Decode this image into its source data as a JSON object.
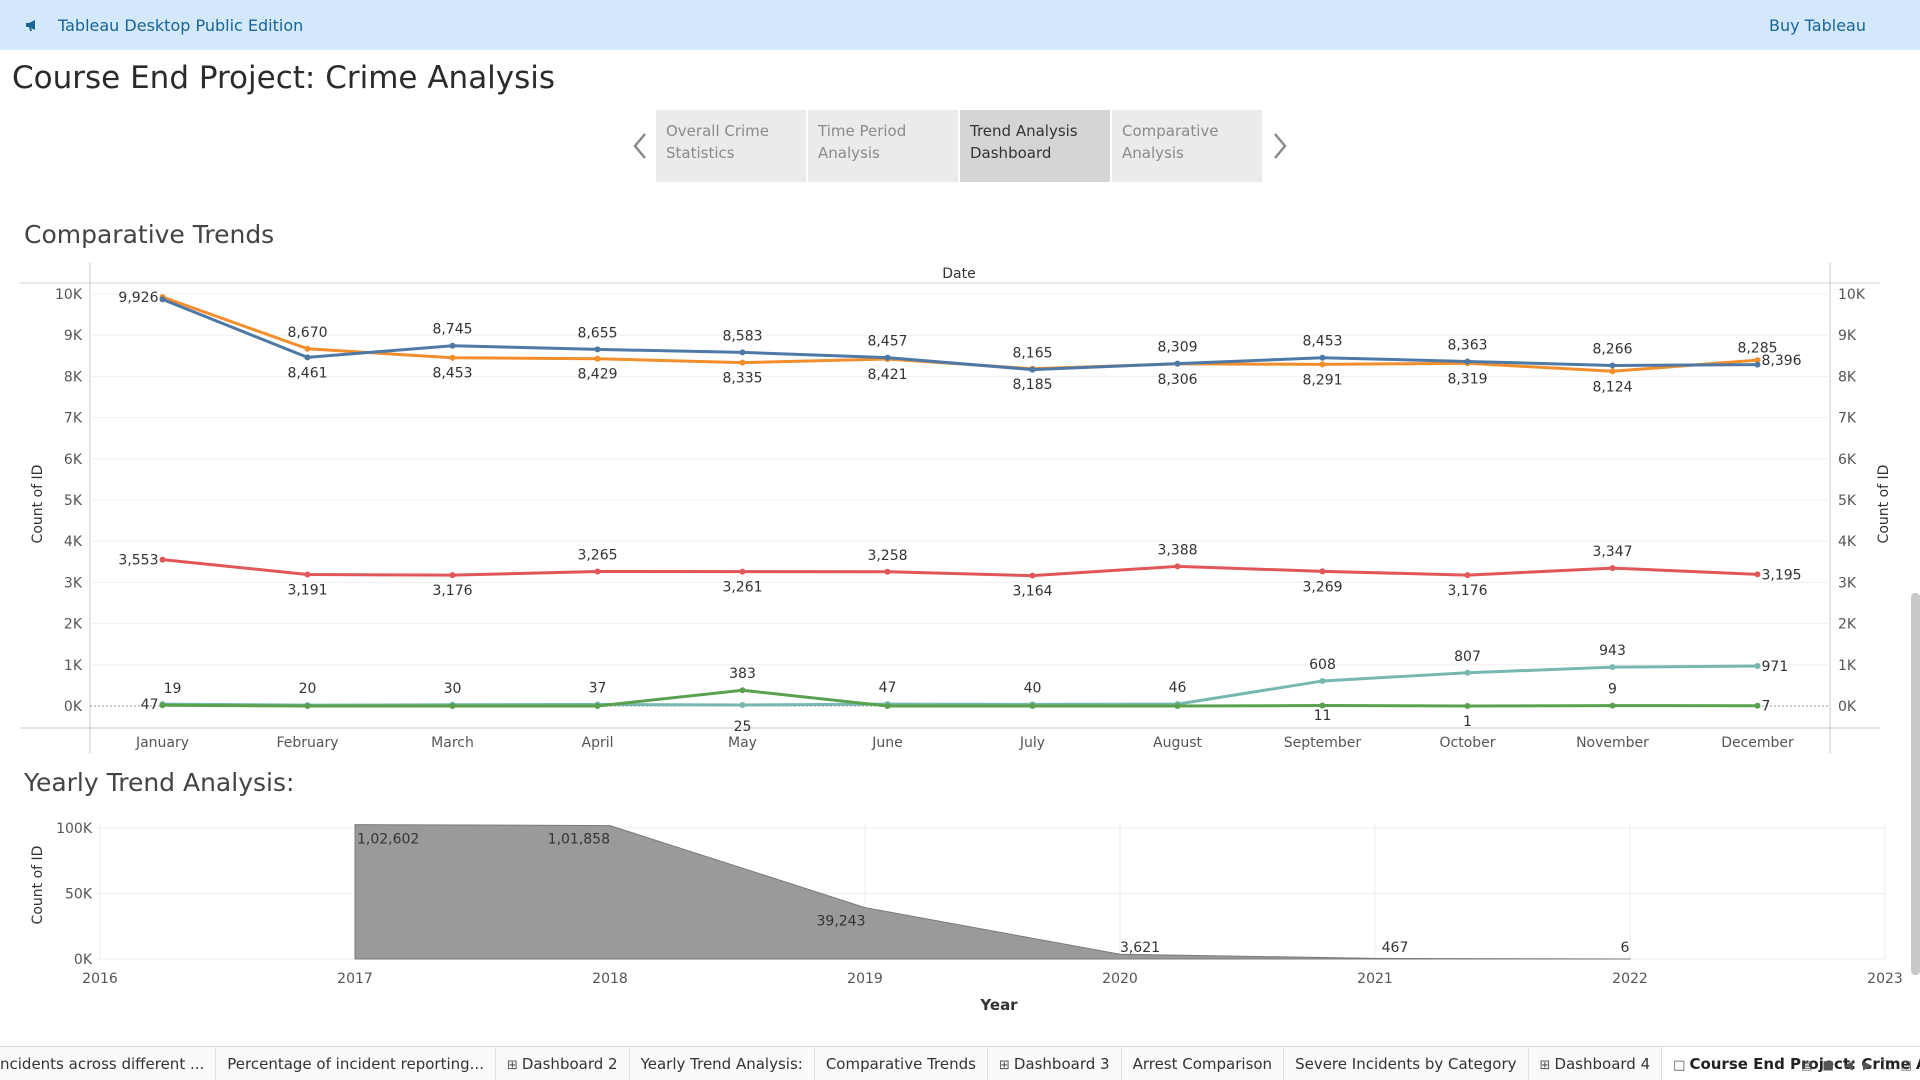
{
  "topbar": {
    "app_name": "Tableau Desktop Public Edition",
    "buy_label": "Buy Tableau"
  },
  "page_title": "Course End Project: Crime Analysis",
  "nav": {
    "tabs": [
      {
        "line1": "Overall Crime",
        "line2": "Statistics",
        "active": false
      },
      {
        "line1": "Time Period",
        "line2": "Analysis",
        "active": false
      },
      {
        "line1": "Trend Analysis",
        "line2": "Dashboard",
        "active": true
      },
      {
        "line1": "Comparative",
        "line2": "Analysis",
        "active": false
      }
    ]
  },
  "comparative_title": "Comparative Trends",
  "yearly_title": "Yearly Trend Analysis:",
  "chart_data": [
    {
      "type": "line",
      "title": "Comparative Trends",
      "header": "Date",
      "ylabel": "Count of ID",
      "ylim": [
        0,
        10000
      ],
      "yticks": [
        "0K",
        "1K",
        "2K",
        "3K",
        "4K",
        "5K",
        "6K",
        "7K",
        "8K",
        "9K",
        "10K"
      ],
      "categories": [
        "January",
        "February",
        "March",
        "April",
        "May",
        "June",
        "July",
        "August",
        "September",
        "October",
        "November",
        "December"
      ],
      "series": [
        {
          "color": "#f28e2b",
          "values": [
            9926,
            8670,
            8453,
            8429,
            8335,
            8421,
            8185,
            8306,
            8291,
            8319,
            8124,
            8396
          ],
          "labels": [
            "9,926",
            "8,670",
            "8,453",
            "8,429",
            "8,335",
            "8,421",
            "8,185",
            "8,306",
            "8,291",
            "8,319",
            "8,124",
            "8,396"
          ]
        },
        {
          "color": "#4e79a7",
          "values": [
            9870,
            8461,
            8745,
            8655,
            8583,
            8457,
            8165,
            8309,
            8453,
            8363,
            8266,
            8285
          ],
          "labels": [
            "",
            "8,461",
            "8,745",
            "8,655",
            "8,583",
            "8,457",
            "8,165",
            "8,309",
            "8,453",
            "8,363",
            "8,266",
            "8,285"
          ]
        },
        {
          "color": "#e15759",
          "values": [
            3553,
            3191,
            3176,
            3265,
            3261,
            3258,
            3164,
            3388,
            3269,
            3176,
            3347,
            3195
          ],
          "labels": [
            "3,553",
            "3,191",
            "3,176",
            "3,265",
            "3,261",
            "3,258",
            "3,164",
            "3,388",
            "3,269",
            "3,176",
            "3,347",
            "3,195"
          ]
        },
        {
          "color": "#76b7b2",
          "values": [
            47,
            20,
            30,
            37,
            25,
            47,
            40,
            46,
            608,
            807,
            943,
            971
          ],
          "labels": [
            "47",
            "20",
            "30",
            "37",
            "25",
            "47",
            "40",
            "46",
            "608",
            "807",
            "943",
            "971"
          ]
        },
        {
          "color": "#59a14f",
          "values": [
            19,
            0,
            0,
            0,
            383,
            0,
            0,
            0,
            11,
            1,
            9,
            7
          ],
          "labels": [
            "19",
            "",
            "",
            "",
            "383",
            "",
            "",
            "",
            "11",
            "1",
            "9",
            "7"
          ]
        }
      ]
    },
    {
      "type": "area",
      "title": "Yearly Trend Analysis:",
      "xlabel": "Year",
      "ylabel": "Count of ID",
      "ylim": [
        0,
        100000
      ],
      "yticks": [
        "0K",
        "50K",
        "100K"
      ],
      "xticks": [
        "2016",
        "2017",
        "2018",
        "2019",
        "2020",
        "2021",
        "2022",
        "2023"
      ],
      "xrange": [
        2016,
        2023
      ],
      "points": [
        {
          "x": 2017,
          "y": 102602,
          "label": "1,02,602"
        },
        {
          "x": 2018,
          "y": 101858,
          "label": "1,01,858"
        },
        {
          "x": 2019,
          "y": 39243,
          "label": "39,243"
        },
        {
          "x": 2020,
          "y": 3621,
          "label": "3,621"
        },
        {
          "x": 2021,
          "y": 467,
          "label": "467"
        },
        {
          "x": 2022,
          "y": 6,
          "label": "6"
        }
      ],
      "color": "#9a9a9a"
    }
  ],
  "sheet_tabs": [
    {
      "label": "ncidents across different ...",
      "icon": "",
      "active": false
    },
    {
      "label": "Percentage of incident reporting...",
      "icon": "",
      "active": false
    },
    {
      "label": "Dashboard 2",
      "icon": "dashboard-icon",
      "active": false
    },
    {
      "label": "Yearly Trend Analysis:",
      "icon": "",
      "active": false
    },
    {
      "label": "Comparative Trends",
      "icon": "",
      "active": false
    },
    {
      "label": "Dashboard 3",
      "icon": "dashboard-icon",
      "active": false
    },
    {
      "label": "Arrest Comparison",
      "icon": "",
      "active": false
    },
    {
      "label": "Severe Incidents by Category",
      "icon": "",
      "active": false
    },
    {
      "label": "Dashboard 4",
      "icon": "dashboard-icon",
      "active": false
    },
    {
      "label": "Course End Project: Crime A...",
      "icon": "story-icon",
      "active": true
    }
  ]
}
